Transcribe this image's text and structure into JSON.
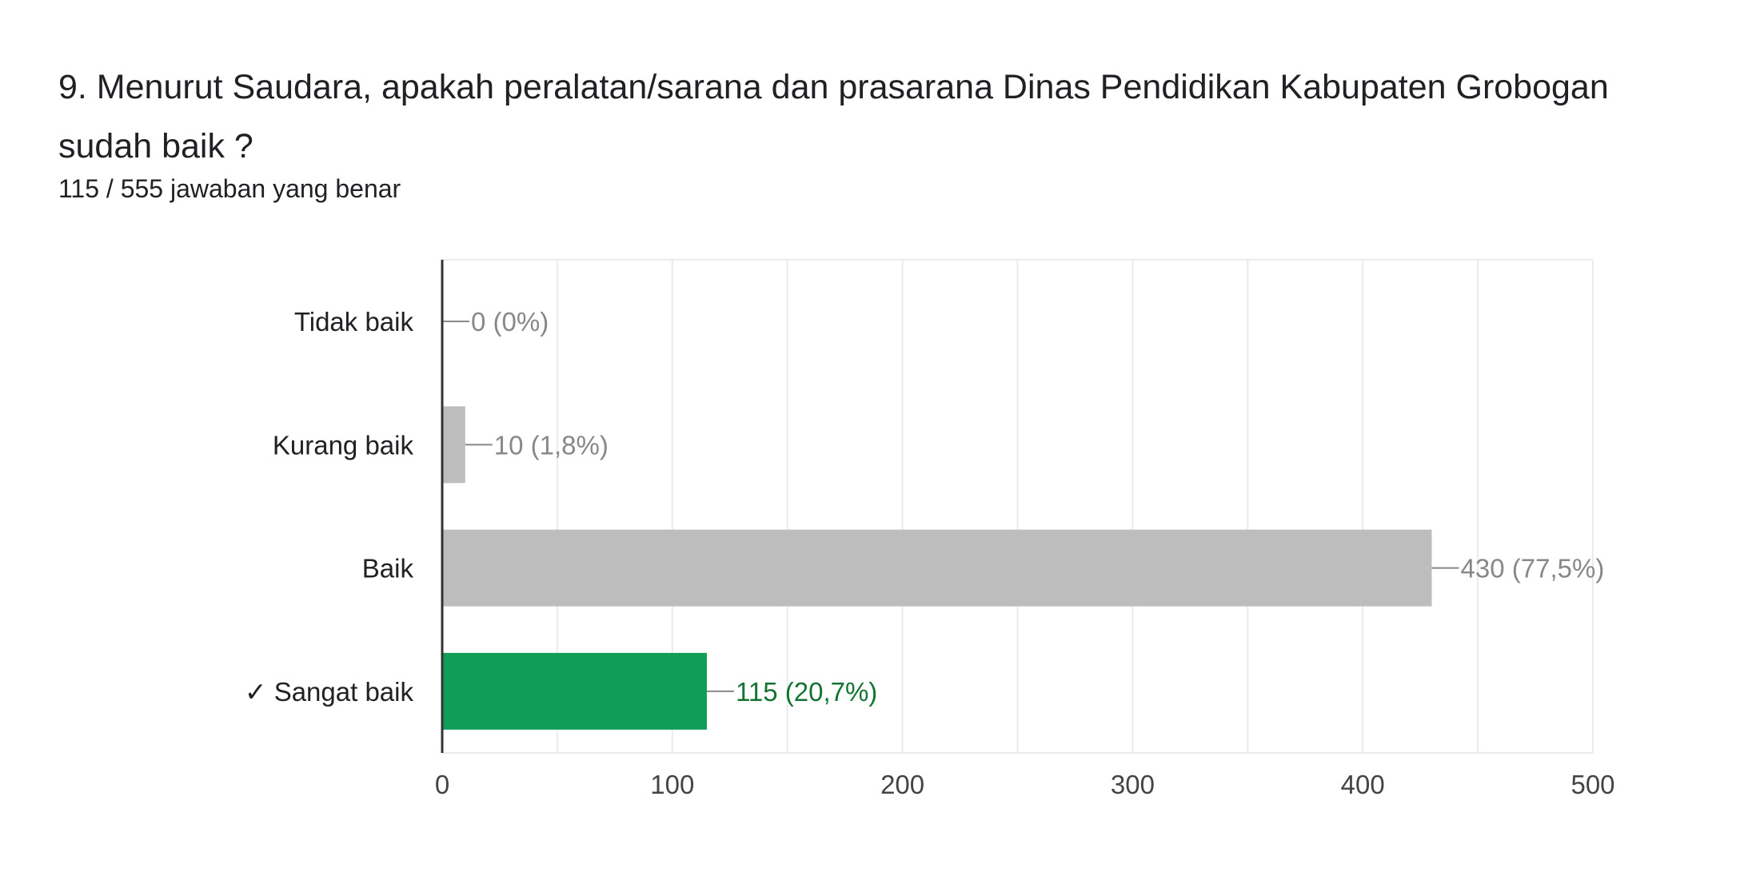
{
  "question": {
    "title": "9. Menurut Saudara, apakah peralatan/sarana dan prasarana Dinas Pendidikan Kabupaten Grobogan sudah baik ?",
    "summary": "115 / 555 jawaban yang benar"
  },
  "colors": {
    "bar_default": "#bdbdbd",
    "bar_correct": "#0f9d58",
    "label_default": "#888888",
    "label_correct": "#137333",
    "category_text": "#202124",
    "grid": "#ebebeb",
    "axis": "#333333",
    "tick_text": "#444444"
  },
  "chart_data": {
    "type": "bar",
    "orientation": "horizontal",
    "categories": [
      "Tidak baik",
      "Kurang baik",
      "Baik",
      "✓ Sangat baik"
    ],
    "values": [
      0,
      10,
      430,
      115
    ],
    "data_labels": [
      "0 (0%)",
      "10 (1,8%)",
      "430 (77,5%)",
      "115 (20,7%)"
    ],
    "correct": [
      false,
      false,
      false,
      true
    ],
    "xlim": [
      0,
      500
    ],
    "xticks": [
      0,
      100,
      200,
      300,
      400,
      500
    ],
    "grid": true,
    "title": "",
    "xlabel": "",
    "ylabel": ""
  }
}
